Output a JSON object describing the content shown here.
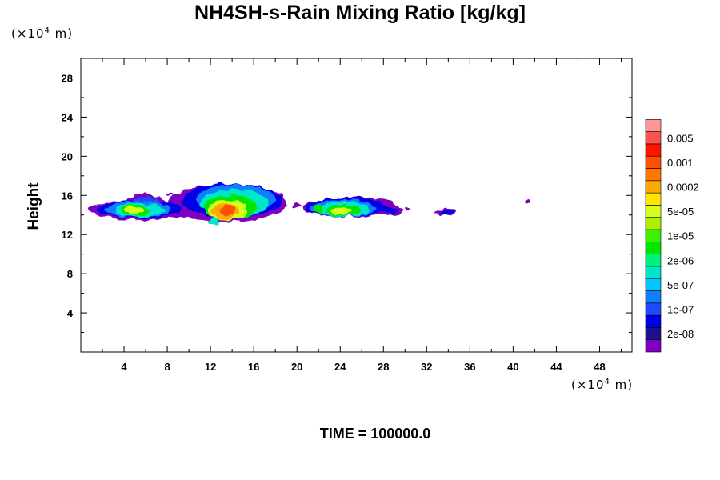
{
  "chart_data": {
    "type": "heatmap",
    "title": "NH4SH-s-Rain Mixing Ratio [kg/kg]",
    "ylabel": "Height",
    "x_unit": {
      "prefix": "(×10",
      "exp": "4",
      "suffix": " m)"
    },
    "y_unit": {
      "prefix": "(×10",
      "exp": "4",
      "suffix": " m)"
    },
    "xlim": [
      0,
      51
    ],
    "ylim": [
      0,
      30
    ],
    "x_ticks": [
      4,
      8,
      12,
      16,
      20,
      24,
      28,
      32,
      36,
      40,
      44,
      48
    ],
    "y_ticks": [
      4,
      8,
      12,
      16,
      20,
      24,
      28
    ],
    "levels": [
      {
        "label": "",
        "color": "#7f00bf"
      },
      {
        "label": "2e-08",
        "color": "#1a0f8f"
      },
      {
        "label": "",
        "color": "#0000e6"
      },
      {
        "label": "1e-07",
        "color": "#1e4bff"
      },
      {
        "label": "",
        "color": "#0f7fff"
      },
      {
        "label": "5e-07",
        "color": "#00c8ff"
      },
      {
        "label": "",
        "color": "#00e6c8"
      },
      {
        "label": "2e-06",
        "color": "#00f07a"
      },
      {
        "label": "",
        "color": "#00e600"
      },
      {
        "label": "1e-05",
        "color": "#3cf000"
      },
      {
        "label": "",
        "color": "#aaf000"
      },
      {
        "label": "5e-05",
        "color": "#d2ff1e"
      },
      {
        "label": "",
        "color": "#ffe600"
      },
      {
        "label": "0.0002",
        "color": "#ffaa00"
      },
      {
        "label": "",
        "color": "#ff7800"
      },
      {
        "label": "0.001",
        "color": "#ff5000"
      },
      {
        "label": "",
        "color": "#ff1400"
      },
      {
        "label": "0.005",
        "color": "#ff5050"
      },
      {
        "label": "",
        "color": "#ff9696"
      }
    ],
    "cells": [
      {
        "x": 5.5,
        "y": 14.5,
        "rx": 4.8,
        "ry": 1.0,
        "level": 0
      },
      {
        "x": 6.0,
        "y": 15.3,
        "rx": 1.8,
        "ry": 0.8,
        "level": 0
      },
      {
        "x": 5.5,
        "y": 14.6,
        "rx": 3.9,
        "ry": 0.9,
        "level": 2
      },
      {
        "x": 6.0,
        "y": 15.1,
        "rx": 1.4,
        "ry": 0.8,
        "level": 3
      },
      {
        "x": 5.3,
        "y": 14.6,
        "rx": 3.1,
        "ry": 0.8,
        "level": 4
      },
      {
        "x": 5.4,
        "y": 14.5,
        "rx": 2.3,
        "ry": 0.7,
        "level": 6
      },
      {
        "x": 5.0,
        "y": 14.5,
        "rx": 1.3,
        "ry": 0.55,
        "level": 8
      },
      {
        "x": 4.9,
        "y": 14.5,
        "rx": 0.9,
        "ry": 0.4,
        "level": 11
      },
      {
        "x": 13.5,
        "y": 15.2,
        "rx": 5.5,
        "ry": 1.9,
        "level": 0
      },
      {
        "x": 14.0,
        "y": 15.5,
        "rx": 4.6,
        "ry": 1.7,
        "level": 2
      },
      {
        "x": 14.3,
        "y": 15.6,
        "rx": 3.7,
        "ry": 1.5,
        "level": 4
      },
      {
        "x": 14.2,
        "y": 15.2,
        "rx": 3.2,
        "ry": 1.4,
        "level": 6
      },
      {
        "x": 13.8,
        "y": 14.8,
        "rx": 2.4,
        "ry": 1.2,
        "level": 8
      },
      {
        "x": 13.6,
        "y": 14.5,
        "rx": 1.8,
        "ry": 1.0,
        "level": 11
      },
      {
        "x": 13.4,
        "y": 14.4,
        "rx": 1.3,
        "ry": 0.75,
        "level": 13
      },
      {
        "x": 13.6,
        "y": 14.5,
        "rx": 0.8,
        "ry": 0.5,
        "level": 15
      },
      {
        "x": 12.3,
        "y": 13.4,
        "rx": 0.4,
        "ry": 0.5,
        "level": 6
      },
      {
        "x": 25.0,
        "y": 14.8,
        "rx": 4.5,
        "ry": 1.0,
        "level": 0
      },
      {
        "x": 24.5,
        "y": 14.8,
        "rx": 3.7,
        "ry": 0.95,
        "level": 2
      },
      {
        "x": 24.3,
        "y": 14.7,
        "rx": 3.0,
        "ry": 0.85,
        "level": 4
      },
      {
        "x": 24.4,
        "y": 14.6,
        "rx": 2.3,
        "ry": 0.75,
        "level": 6
      },
      {
        "x": 24.3,
        "y": 14.5,
        "rx": 1.6,
        "ry": 0.55,
        "level": 8
      },
      {
        "x": 24.2,
        "y": 14.4,
        "rx": 0.9,
        "ry": 0.35,
        "level": 11
      },
      {
        "x": 22.0,
        "y": 14.6,
        "rx": 0.5,
        "ry": 0.45,
        "level": 8
      },
      {
        "x": 28.6,
        "y": 14.4,
        "rx": 1.3,
        "ry": 0.45,
        "level": 0
      },
      {
        "x": 28.6,
        "y": 14.5,
        "rx": 0.8,
        "ry": 0.3,
        "level": 2
      },
      {
        "x": 33.7,
        "y": 14.3,
        "rx": 1.0,
        "ry": 0.3,
        "level": 0
      },
      {
        "x": 33.9,
        "y": 14.3,
        "rx": 0.6,
        "ry": 0.22,
        "level": 2
      },
      {
        "x": 18.2,
        "y": 16.0,
        "rx": 0.5,
        "ry": 0.4,
        "level": 0
      },
      {
        "x": 20.0,
        "y": 14.9,
        "rx": 0.4,
        "ry": 0.2,
        "level": 0
      },
      {
        "x": 30.2,
        "y": 14.6,
        "rx": 0.2,
        "ry": 0.2,
        "level": 0
      },
      {
        "x": 41.3,
        "y": 15.4,
        "rx": 0.3,
        "ry": 0.18,
        "level": 0
      },
      {
        "x": 11.0,
        "y": 16.2,
        "rx": 0.3,
        "ry": 0.15,
        "level": 0
      },
      {
        "x": 8.2,
        "y": 16.1,
        "rx": 0.3,
        "ry": 0.12,
        "level": 0
      }
    ]
  },
  "footer": {
    "time_label": "TIME = 100000.0"
  }
}
